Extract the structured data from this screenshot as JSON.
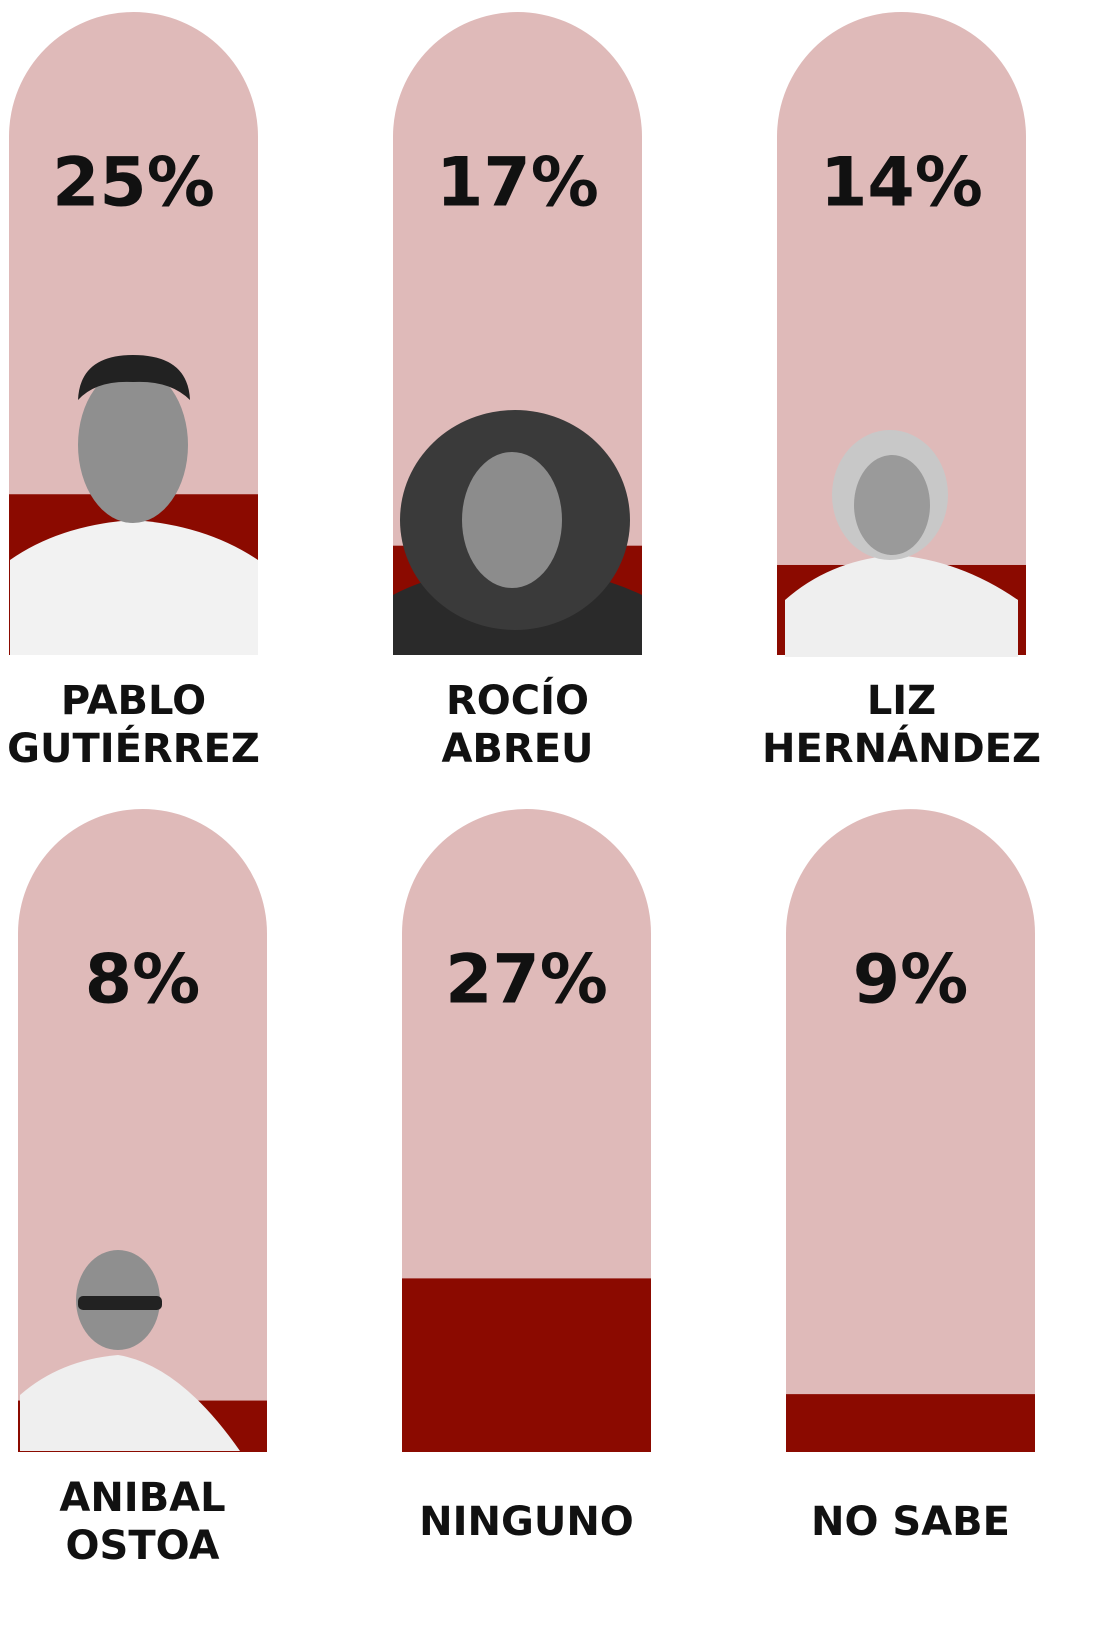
{
  "chart_data": {
    "type": "bar",
    "categories": [
      "PABLO GUTIÉRREZ",
      "ROCÍO ABREU",
      "LIZ HERNÁNDEZ",
      "ANIBAL OSTOA",
      "NINGUNO",
      "NO SABE"
    ],
    "values": [
      25,
      17,
      14,
      8,
      27,
      9
    ],
    "value_labels": [
      "25%",
      "17%",
      "14%",
      "8%",
      "27%",
      "9%"
    ],
    "ylim": [
      0,
      100
    ],
    "color": "#8b0a00",
    "track_color": "#dfbab9"
  }
}
